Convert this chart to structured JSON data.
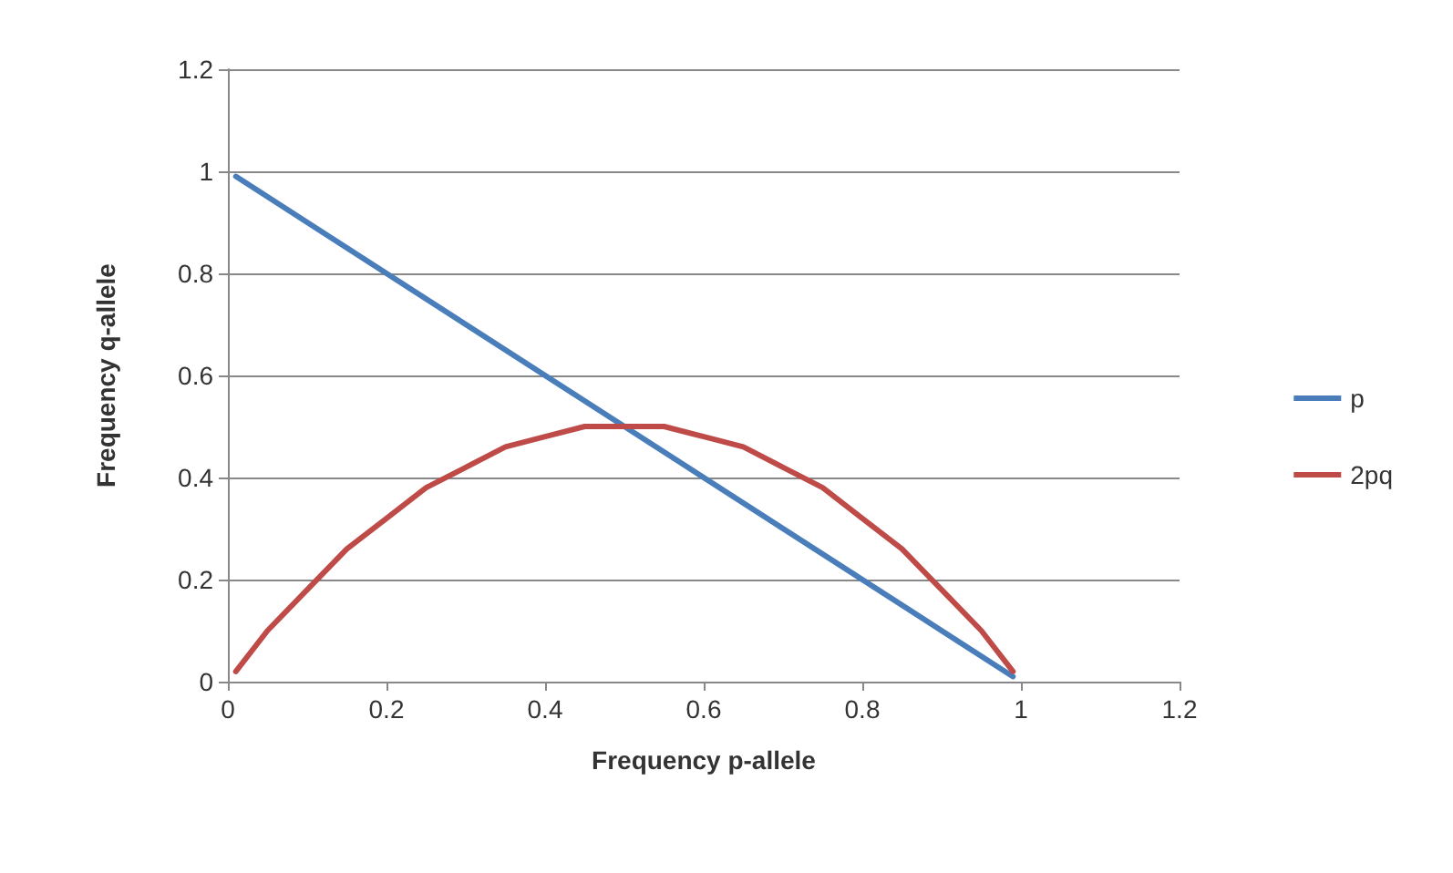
{
  "chart_data": {
    "type": "line",
    "xlabel": "Frequency p-allele",
    "ylabel": "Frequency q-allele",
    "series": [
      {
        "name": "p",
        "color": "#4a7ebb",
        "x": [
          0.01,
          0.99
        ],
        "values": [
          0.99,
          0.01
        ]
      },
      {
        "name": "2pq",
        "color": "#be4b48",
        "x": [
          0.01,
          0.05,
          0.1,
          0.15,
          0.2,
          0.25,
          0.3,
          0.35,
          0.4,
          0.45,
          0.5,
          0.55,
          0.6,
          0.65,
          0.7,
          0.75,
          0.8,
          0.85,
          0.9,
          0.95,
          0.99
        ],
        "values": [
          0.02,
          0.1,
          0.18,
          0.26,
          0.32,
          0.38,
          0.42,
          0.46,
          0.48,
          0.5,
          0.5,
          0.5,
          0.48,
          0.46,
          0.42,
          0.38,
          0.32,
          0.26,
          0.18,
          0.1,
          0.02
        ]
      }
    ],
    "xlim": [
      0,
      1.2
    ],
    "xticks": [
      0,
      0.2,
      0.4,
      0.6,
      0.8,
      1,
      1.2
    ],
    "ylim": [
      0,
      1.2
    ],
    "yticks": [
      0,
      0.2,
      0.4,
      0.6,
      0.8,
      1,
      1.2
    ],
    "grid": "y",
    "legend": "right",
    "marker": "none",
    "line_style": "solid"
  }
}
